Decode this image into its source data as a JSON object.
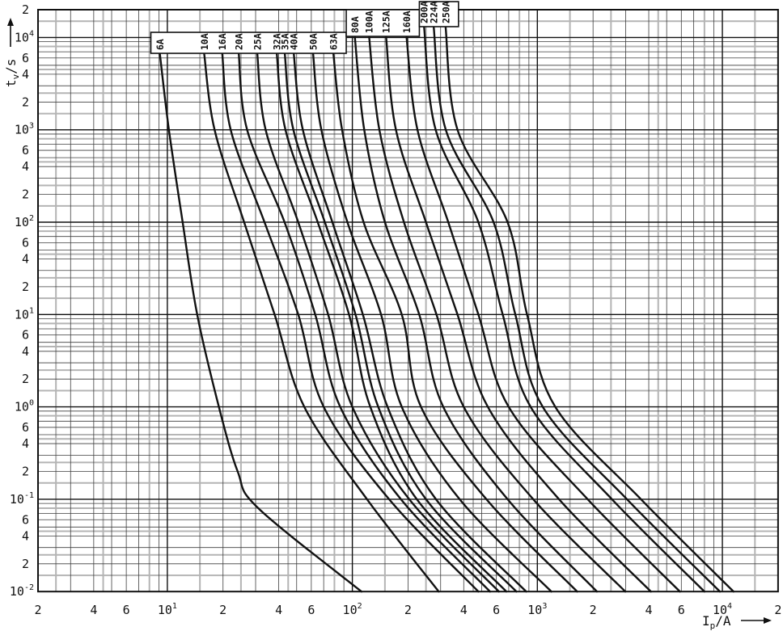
{
  "page": {
    "background_color": "#ffffff",
    "ink_color": "#111111",
    "gray_grid_color": "#b4b4b4",
    "minor_grid_color": "#3d3d3d"
  },
  "chart_data": {
    "type": "line",
    "title": "",
    "x_scale": "log",
    "y_scale": "log",
    "xlabel_parts": {
      "base": "I",
      "sub": "p",
      "unit": "/A"
    },
    "ylabel_parts": {
      "base": "t",
      "sub": "v",
      "unit": "/s"
    },
    "xlim": [
      2,
      20000
    ],
    "ylim": [
      0.01,
      20000
    ],
    "x_major_exponents": [
      1,
      2,
      3,
      4
    ],
    "y_major_exponents": [
      -2,
      -1,
      0,
      1,
      2,
      3,
      4
    ],
    "minor_label_multipliers": [
      2,
      4,
      6
    ],
    "grid": {
      "black_minor_multipliers": [
        2,
        3,
        4,
        5,
        6,
        7,
        9
      ],
      "gray_multipliers": [
        1.5,
        2.5,
        4.5,
        8
      ],
      "legend_position": "top-stepped-boxes",
      "grid_on": true
    },
    "curve_color": "#111111",
    "series": [
      {
        "label": "6A",
        "amps": 6,
        "group": 1,
        "points": [
          [
            9.1,
            6800
          ],
          [
            10.2,
            1000
          ],
          [
            12.1,
            100
          ],
          [
            14.5,
            10
          ],
          [
            19,
            1
          ],
          [
            24,
            0.2
          ],
          [
            31,
            0.08
          ],
          [
            112,
            0.01
          ]
        ]
      },
      {
        "label": "10A",
        "amps": 10,
        "group": 1,
        "points": [
          [
            15.8,
            6800
          ],
          [
            18,
            1000
          ],
          [
            26,
            100
          ],
          [
            38,
            10
          ],
          [
            55,
            1
          ],
          [
            120,
            0.1
          ],
          [
            293,
            0.01
          ]
        ]
      },
      {
        "label": "16A",
        "amps": 16,
        "group": 1,
        "points": [
          [
            19.8,
            6800
          ],
          [
            22,
            1000
          ],
          [
            33.5,
            100
          ],
          [
            51,
            10
          ],
          [
            70,
            1
          ],
          [
            158,
            0.1
          ],
          [
            480,
            0.01
          ]
        ]
      },
      {
        "label": "20A",
        "amps": 20,
        "group": 1,
        "points": [
          [
            24.3,
            6800
          ],
          [
            27,
            1000
          ],
          [
            43,
            100
          ],
          [
            63,
            10
          ],
          [
            86,
            1
          ],
          [
            183,
            0.1
          ],
          [
            555,
            0.01
          ]
        ]
      },
      {
        "label": "25A",
        "amps": 25,
        "group": 1,
        "points": [
          [
            30.6,
            6800
          ],
          [
            34,
            1000
          ],
          [
            51,
            100
          ],
          [
            74,
            10
          ],
          [
            100,
            1
          ],
          [
            203,
            0.1
          ],
          [
            620,
            0.01
          ]
        ]
      },
      {
        "label": "32A",
        "amps": 32,
        "group": 1,
        "points": [
          [
            39,
            6800
          ],
          [
            43.5,
            1000
          ],
          [
            65,
            100
          ],
          [
            96,
            10
          ],
          [
            125,
            1
          ],
          [
            223,
            0.1
          ],
          [
            680,
            0.01
          ]
        ]
      },
      {
        "label": "35A",
        "amps": 35,
        "group": 1,
        "points": [
          [
            43.1,
            6800
          ],
          [
            48,
            1000
          ],
          [
            71,
            100
          ],
          [
            104,
            10
          ],
          [
            138,
            1
          ],
          [
            250,
            0.1
          ],
          [
            770,
            0.01
          ]
        ]
      },
      {
        "label": "40A",
        "amps": 40,
        "group": 1,
        "points": [
          [
            48.2,
            6800
          ],
          [
            54,
            1000
          ],
          [
            78,
            100
          ],
          [
            114,
            10
          ],
          [
            155,
            1
          ],
          [
            283,
            0.1
          ],
          [
            870,
            0.01
          ]
        ]
      },
      {
        "label": "50A",
        "amps": 50,
        "group": 1,
        "points": [
          [
            61.3,
            6800
          ],
          [
            68,
            1000
          ],
          [
            94,
            100
          ],
          [
            143,
            10
          ],
          [
            185,
            1
          ],
          [
            380,
            0.1
          ],
          [
            1190,
            0.01
          ]
        ]
      },
      {
        "label": "63A",
        "amps": 63,
        "group": 1,
        "points": [
          [
            78.9,
            6800
          ],
          [
            88,
            1000
          ],
          [
            115,
            100
          ],
          [
            185,
            10
          ],
          [
            235,
            1
          ],
          [
            530,
            0.1
          ],
          [
            1640,
            0.01
          ]
        ]
      },
      {
        "label": "80A",
        "amps": 80,
        "group": 2,
        "points": [
          [
            103,
            10500
          ],
          [
            116,
            1000
          ],
          [
            150,
            100
          ],
          [
            230,
            10
          ],
          [
            310,
            1
          ],
          [
            690,
            0.1
          ],
          [
            2100,
            0.01
          ]
        ]
      },
      {
        "label": "100A",
        "amps": 100,
        "group": 2,
        "points": [
          [
            123,
            10500
          ],
          [
            140,
            1000
          ],
          [
            190,
            100
          ],
          [
            285,
            10
          ],
          [
            400,
            1
          ],
          [
            950,
            0.1
          ],
          [
            2990,
            0.01
          ]
        ]
      },
      {
        "label": "125A",
        "amps": 125,
        "group": 2,
        "points": [
          [
            152,
            10500
          ],
          [
            172,
            1000
          ],
          [
            250,
            100
          ],
          [
            370,
            10
          ],
          [
            540,
            1
          ],
          [
            1310,
            0.1
          ],
          [
            4110,
            0.01
          ]
        ]
      },
      {
        "label": "160A",
        "amps": 160,
        "group": 2,
        "points": [
          [
            196,
            10500
          ],
          [
            225,
            1000
          ],
          [
            330,
            100
          ],
          [
            480,
            10
          ],
          [
            700,
            1
          ],
          [
            1870,
            0.1
          ],
          [
            5900,
            0.01
          ]
        ]
      },
      {
        "label": "200A",
        "amps": 200,
        "group": 3,
        "points": [
          [
            244,
            13200
          ],
          [
            282,
            1000
          ],
          [
            480,
            100
          ],
          [
            650,
            10
          ],
          [
            920,
            1
          ],
          [
            2530,
            0.1
          ],
          [
            8000,
            0.01
          ]
        ]
      },
      {
        "label": "224A",
        "amps": 224,
        "group": 3,
        "points": [
          [
            275,
            13200
          ],
          [
            320,
            1000
          ],
          [
            580,
            100
          ],
          [
            760,
            10
          ],
          [
            1070,
            1
          ],
          [
            3050,
            0.1
          ],
          [
            9700,
            0.01
          ]
        ]
      },
      {
        "label": "250A",
        "amps": 250,
        "group": 3,
        "points": [
          [
            319,
            13200
          ],
          [
            370,
            1000
          ],
          [
            690,
            100
          ],
          [
            880,
            10
          ],
          [
            1250,
            1
          ],
          [
            3630,
            0.1
          ],
          [
            11500,
            0.01
          ]
        ]
      }
    ]
  }
}
